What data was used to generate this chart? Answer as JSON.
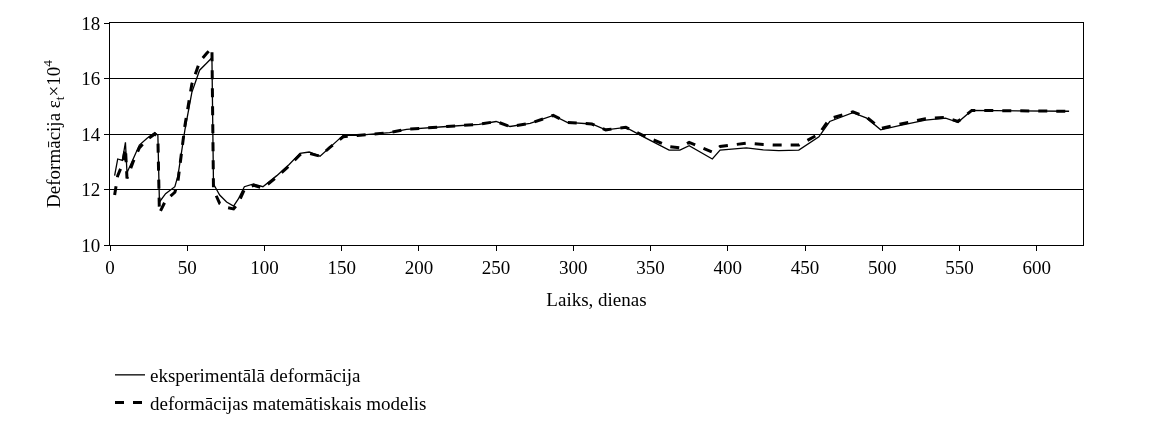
{
  "chart_data": {
    "type": "line",
    "xlabel": "Laiks, dienas",
    "ylabel": "Deformācija ε$_{t}$×10$^{4}$",
    "xlim": [
      0,
      630
    ],
    "xticks": [
      0,
      50,
      100,
      150,
      200,
      250,
      300,
      350,
      400,
      450,
      500,
      550,
      600
    ],
    "ylim": [
      10,
      18
    ],
    "yticks": [
      10,
      12,
      14,
      16,
      18
    ],
    "grid": "y",
    "legend": "bottom",
    "marker": "none",
    "series": [
      {
        "name": "eksperimentālā deformācija",
        "color": "#000000",
        "line_style": "solid",
        "x": [
          3,
          5,
          8,
          10,
          11,
          15,
          19,
          24,
          29,
          31,
          32,
          36,
          42,
          44,
          48.5,
          53,
          58,
          62.5,
          66,
          67,
          71,
          75.5,
          80,
          83,
          87,
          93,
          99,
          108,
          116,
          123,
          129,
          136,
          142,
          151,
          160,
          181,
          192,
          218,
          239,
          250,
          259,
          272,
          287,
          296,
          312,
          321,
          334,
          347,
          362,
          369,
          375,
          390,
          395,
          412,
          423,
          433,
          446,
          459,
          466,
          481,
          490,
          499,
          511,
          528,
          541,
          549,
          558,
          621
        ],
        "values": [
          12.5,
          13.1,
          13.05,
          13.7,
          12.6,
          13.1,
          13.6,
          13.85,
          14.05,
          13.95,
          11.55,
          11.85,
          12.1,
          12.5,
          14.15,
          15.5,
          16.3,
          16.55,
          16.75,
          12.2,
          11.8,
          11.55,
          11.4,
          11.65,
          12.1,
          12.2,
          12.1,
          12.5,
          12.9,
          13.3,
          13.35,
          13.2,
          13.5,
          13.95,
          13.95,
          14.05,
          14.17,
          14.27,
          14.35,
          14.45,
          14.27,
          14.38,
          14.67,
          14.42,
          14.36,
          14.15,
          14.24,
          13.85,
          13.42,
          13.42,
          13.58,
          13.1,
          13.42,
          13.5,
          13.43,
          13.4,
          13.42,
          13.9,
          14.45,
          14.77,
          14.57,
          14.15,
          14.3,
          14.5,
          14.57,
          14.42,
          14.85,
          14.82
        ]
      },
      {
        "name": "deformācijas matemātiskais modelis",
        "color": "#000000",
        "line_style": "dashed",
        "x": [
          3,
          5,
          8,
          10,
          11,
          15,
          19,
          24,
          29,
          31,
          32,
          36,
          42,
          44,
          48.5,
          53,
          58,
          62.5,
          66,
          67,
          71,
          75.5,
          80,
          83,
          87,
          93,
          99,
          108,
          116,
          123,
          129,
          136,
          142,
          151,
          160,
          181,
          192,
          218,
          239,
          250,
          259,
          272,
          287,
          296,
          312,
          321,
          334,
          347,
          362,
          369,
          375,
          390,
          395,
          412,
          423,
          433,
          446,
          459,
          466,
          481,
          490,
          499,
          511,
          528,
          541,
          549,
          558,
          621
        ],
        "values": [
          11.8,
          12.5,
          12.9,
          13.5,
          12.4,
          13.0,
          13.5,
          13.8,
          14.0,
          13.9,
          11.15,
          11.6,
          11.9,
          12.3,
          14.3,
          15.8,
          16.6,
          16.9,
          17.1,
          12.0,
          11.5,
          11.35,
          11.3,
          11.5,
          12.0,
          12.15,
          12.05,
          12.45,
          12.85,
          13.25,
          13.3,
          13.2,
          13.5,
          13.9,
          13.95,
          14.05,
          14.17,
          14.27,
          14.35,
          14.45,
          14.27,
          14.38,
          14.67,
          14.42,
          14.36,
          14.15,
          14.24,
          13.9,
          13.55,
          13.5,
          13.7,
          13.35,
          13.55,
          13.67,
          13.62,
          13.6,
          13.6,
          14.0,
          14.55,
          14.8,
          14.6,
          14.2,
          14.35,
          14.55,
          14.6,
          14.45,
          14.85,
          14.82
        ]
      }
    ]
  }
}
